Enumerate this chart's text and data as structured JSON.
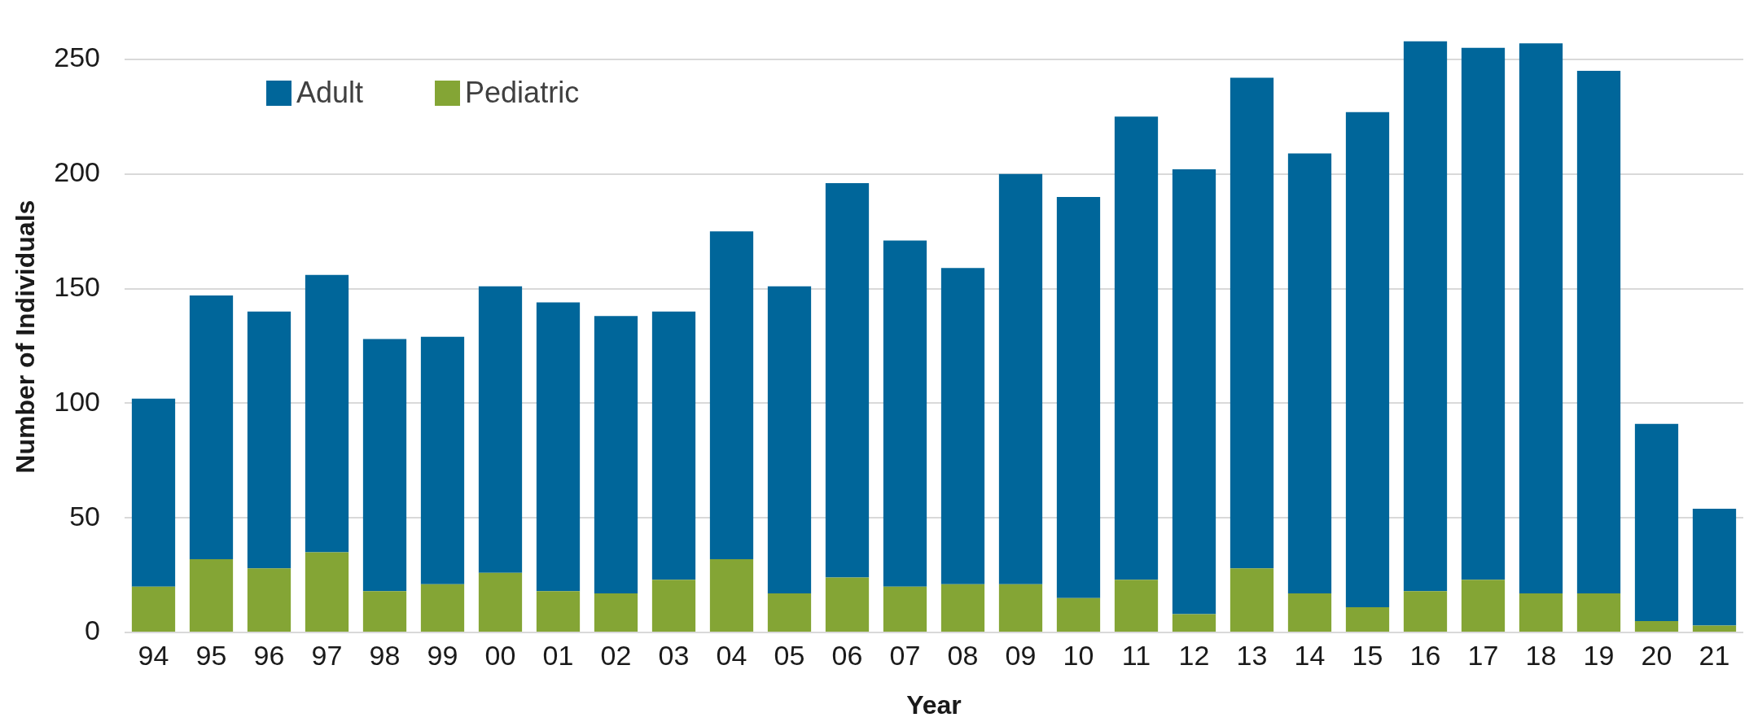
{
  "chart_data": {
    "type": "bar",
    "xlabel": "Year",
    "ylabel": "Number of Individuals",
    "categories": [
      "94",
      "95",
      "96",
      "97",
      "98",
      "99",
      "00",
      "01",
      "02",
      "03",
      "04",
      "05",
      "06",
      "07",
      "08",
      "09",
      "10",
      "11",
      "12",
      "13",
      "14",
      "15",
      "16",
      "17",
      "18",
      "19",
      "20",
      "21"
    ],
    "series": [
      {
        "name": "Pediatric",
        "color": "#84a535",
        "values": [
          20,
          32,
          28,
          35,
          18,
          21,
          26,
          18,
          17,
          23,
          32,
          17,
          24,
          20,
          21,
          21,
          15,
          23,
          8,
          28,
          17,
          11,
          18,
          23,
          17,
          17,
          5,
          3
        ]
      },
      {
        "name": "Adult",
        "color": "#00669a",
        "values": [
          82,
          115,
          112,
          121,
          110,
          108,
          125,
          126,
          121,
          117,
          143,
          134,
          172,
          151,
          138,
          179,
          175,
          202,
          194,
          214,
          192,
          216,
          240,
          232,
          240,
          228,
          86,
          51
        ]
      }
    ],
    "stacked": true,
    "ylim": [
      0,
      258
    ],
    "yticks": [
      0,
      50,
      100,
      150,
      200,
      250
    ],
    "grid": "y",
    "legend": "top left"
  }
}
